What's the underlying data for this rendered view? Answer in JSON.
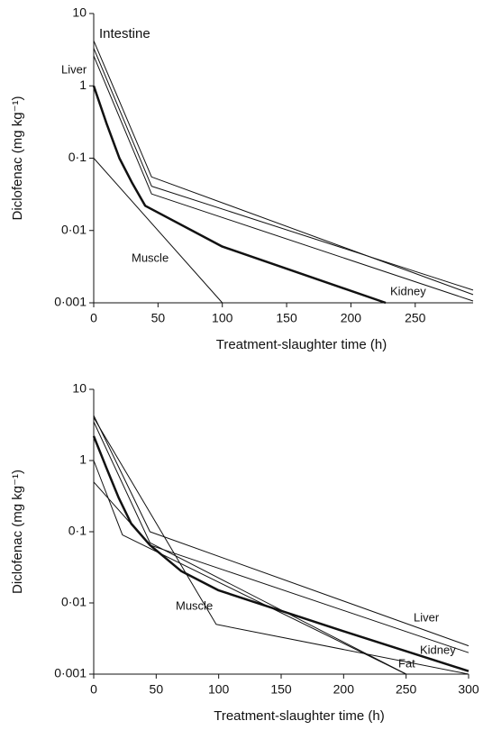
{
  "chart_data": [
    {
      "type": "line",
      "log_y": true,
      "xlabel": "Treatment-slaughter time (h)",
      "ylabel": "Diclofenac (mg kg⁻¹)",
      "xlim": [
        0,
        295
      ],
      "xticks": [
        0,
        50,
        100,
        150,
        200,
        250
      ],
      "ylim": [
        0.001,
        10
      ],
      "yticks": [
        {
          "value": 0.001,
          "label": "0·001"
        },
        {
          "value": 0.01,
          "label": "0·01"
        },
        {
          "value": 0.1,
          "label": "0·1"
        },
        1,
        10
      ],
      "series": [
        {
          "name": "Intestine",
          "color": "#111111",
          "linewidth": 1,
          "x": [
            0,
            45,
            295
          ],
          "values": [
            4.2,
            0.055,
            0.0013
          ]
        },
        {
          "name": "Liver",
          "color": "#111111",
          "linewidth": 1,
          "x": [
            0,
            45,
            295
          ],
          "values": [
            3.3,
            0.041,
            0.0015
          ]
        },
        {
          "color": "#111111",
          "linewidth": 1,
          "x": [
            0,
            45,
            295
          ],
          "values": [
            2.6,
            0.032,
            0.00106
          ]
        },
        {
          "name": "Kidney",
          "color": "#111111",
          "linewidth": 2.5,
          "x": [
            0,
            10,
            20,
            30,
            40,
            100,
            227
          ],
          "values": [
            1,
            0.3,
            0.1,
            0.045,
            0.022,
            0.006,
            0.001
          ]
        },
        {
          "name": "Muscle",
          "color": "#111111",
          "linewidth": 1,
          "x": [
            0,
            100
          ],
          "values": [
            0.1,
            0.001
          ]
        }
      ]
    },
    {
      "type": "line",
      "log_y": true,
      "xlabel": "Treatment-slaughter time (h)",
      "ylabel": "Diclofenac (mg kg⁻¹)",
      "xlim": [
        0,
        300
      ],
      "xticks": [
        0,
        50,
        100,
        150,
        200,
        250,
        300
      ],
      "ylim": [
        0.001,
        10
      ],
      "yticks": [
        {
          "value": 0.001,
          "label": "0·001"
        },
        {
          "value": 0.01,
          "label": "0·01"
        },
        {
          "value": 0.1,
          "label": "0·1"
        },
        1,
        10
      ],
      "series": [
        {
          "name": "Liver",
          "color": "#111111",
          "linewidth": 1,
          "x": [
            0,
            45,
            300
          ],
          "values": [
            4.3,
            0.1,
            0.0025
          ]
        },
        {
          "color": "#111111",
          "linewidth": 1,
          "x": [
            0,
            45,
            300
          ],
          "values": [
            0.5,
            0.065,
            0.002
          ]
        },
        {
          "color": "#111111",
          "linewidth": 1,
          "x": [
            0,
            45,
            250
          ],
          "values": [
            3.5,
            0.07,
            0.001
          ]
        },
        {
          "name": "Fat",
          "color": "#111111",
          "linewidth": 1,
          "x": [
            0,
            23,
            250
          ],
          "values": [
            1,
            0.09,
            0.001
          ]
        },
        {
          "name": "Muscle",
          "color": "#111111",
          "linewidth": 1,
          "x": [
            0,
            98,
            300
          ],
          "values": [
            4,
            0.005,
            0.001
          ]
        },
        {
          "name": "Kidney",
          "color": "#111111",
          "linewidth": 2.5,
          "x": [
            0,
            10,
            20,
            30,
            45,
            70,
            100,
            200,
            300
          ],
          "values": [
            2.2,
            0.8,
            0.3,
            0.13,
            0.065,
            0.028,
            0.015,
            0.004,
            0.0011
          ]
        }
      ]
    }
  ]
}
